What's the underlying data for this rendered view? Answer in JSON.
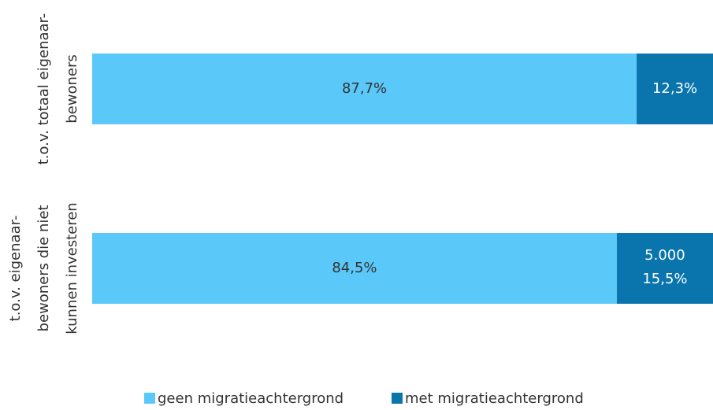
{
  "chart_data": {
    "type": "stacked-bar-horizontal",
    "categories": [
      [
        "t.o.v. totaal eigenaar-",
        "bewoners"
      ],
      [
        "t.o.v. eigenaar-",
        "bewoners die niet",
        "kunnen investeren"
      ]
    ],
    "series": [
      {
        "name": "geen migratieachtergrond",
        "color": "#5bc8fa",
        "label_color": "#333333",
        "values": [
          87.7,
          84.5
        ],
        "value_labels": [
          "87,7%",
          "84,5%"
        ]
      },
      {
        "name": "met migratieachtergrond",
        "color": "#0a74ad",
        "label_color": "#ffffff",
        "values": [
          12.3,
          15.5
        ],
        "value_labels": [
          "12,3%",
          "15,5%"
        ]
      }
    ],
    "annotations": [
      {
        "text": "5.000",
        "series": 1,
        "category": 1
      }
    ],
    "xlim": [
      0,
      100
    ],
    "legend": "bottom"
  }
}
